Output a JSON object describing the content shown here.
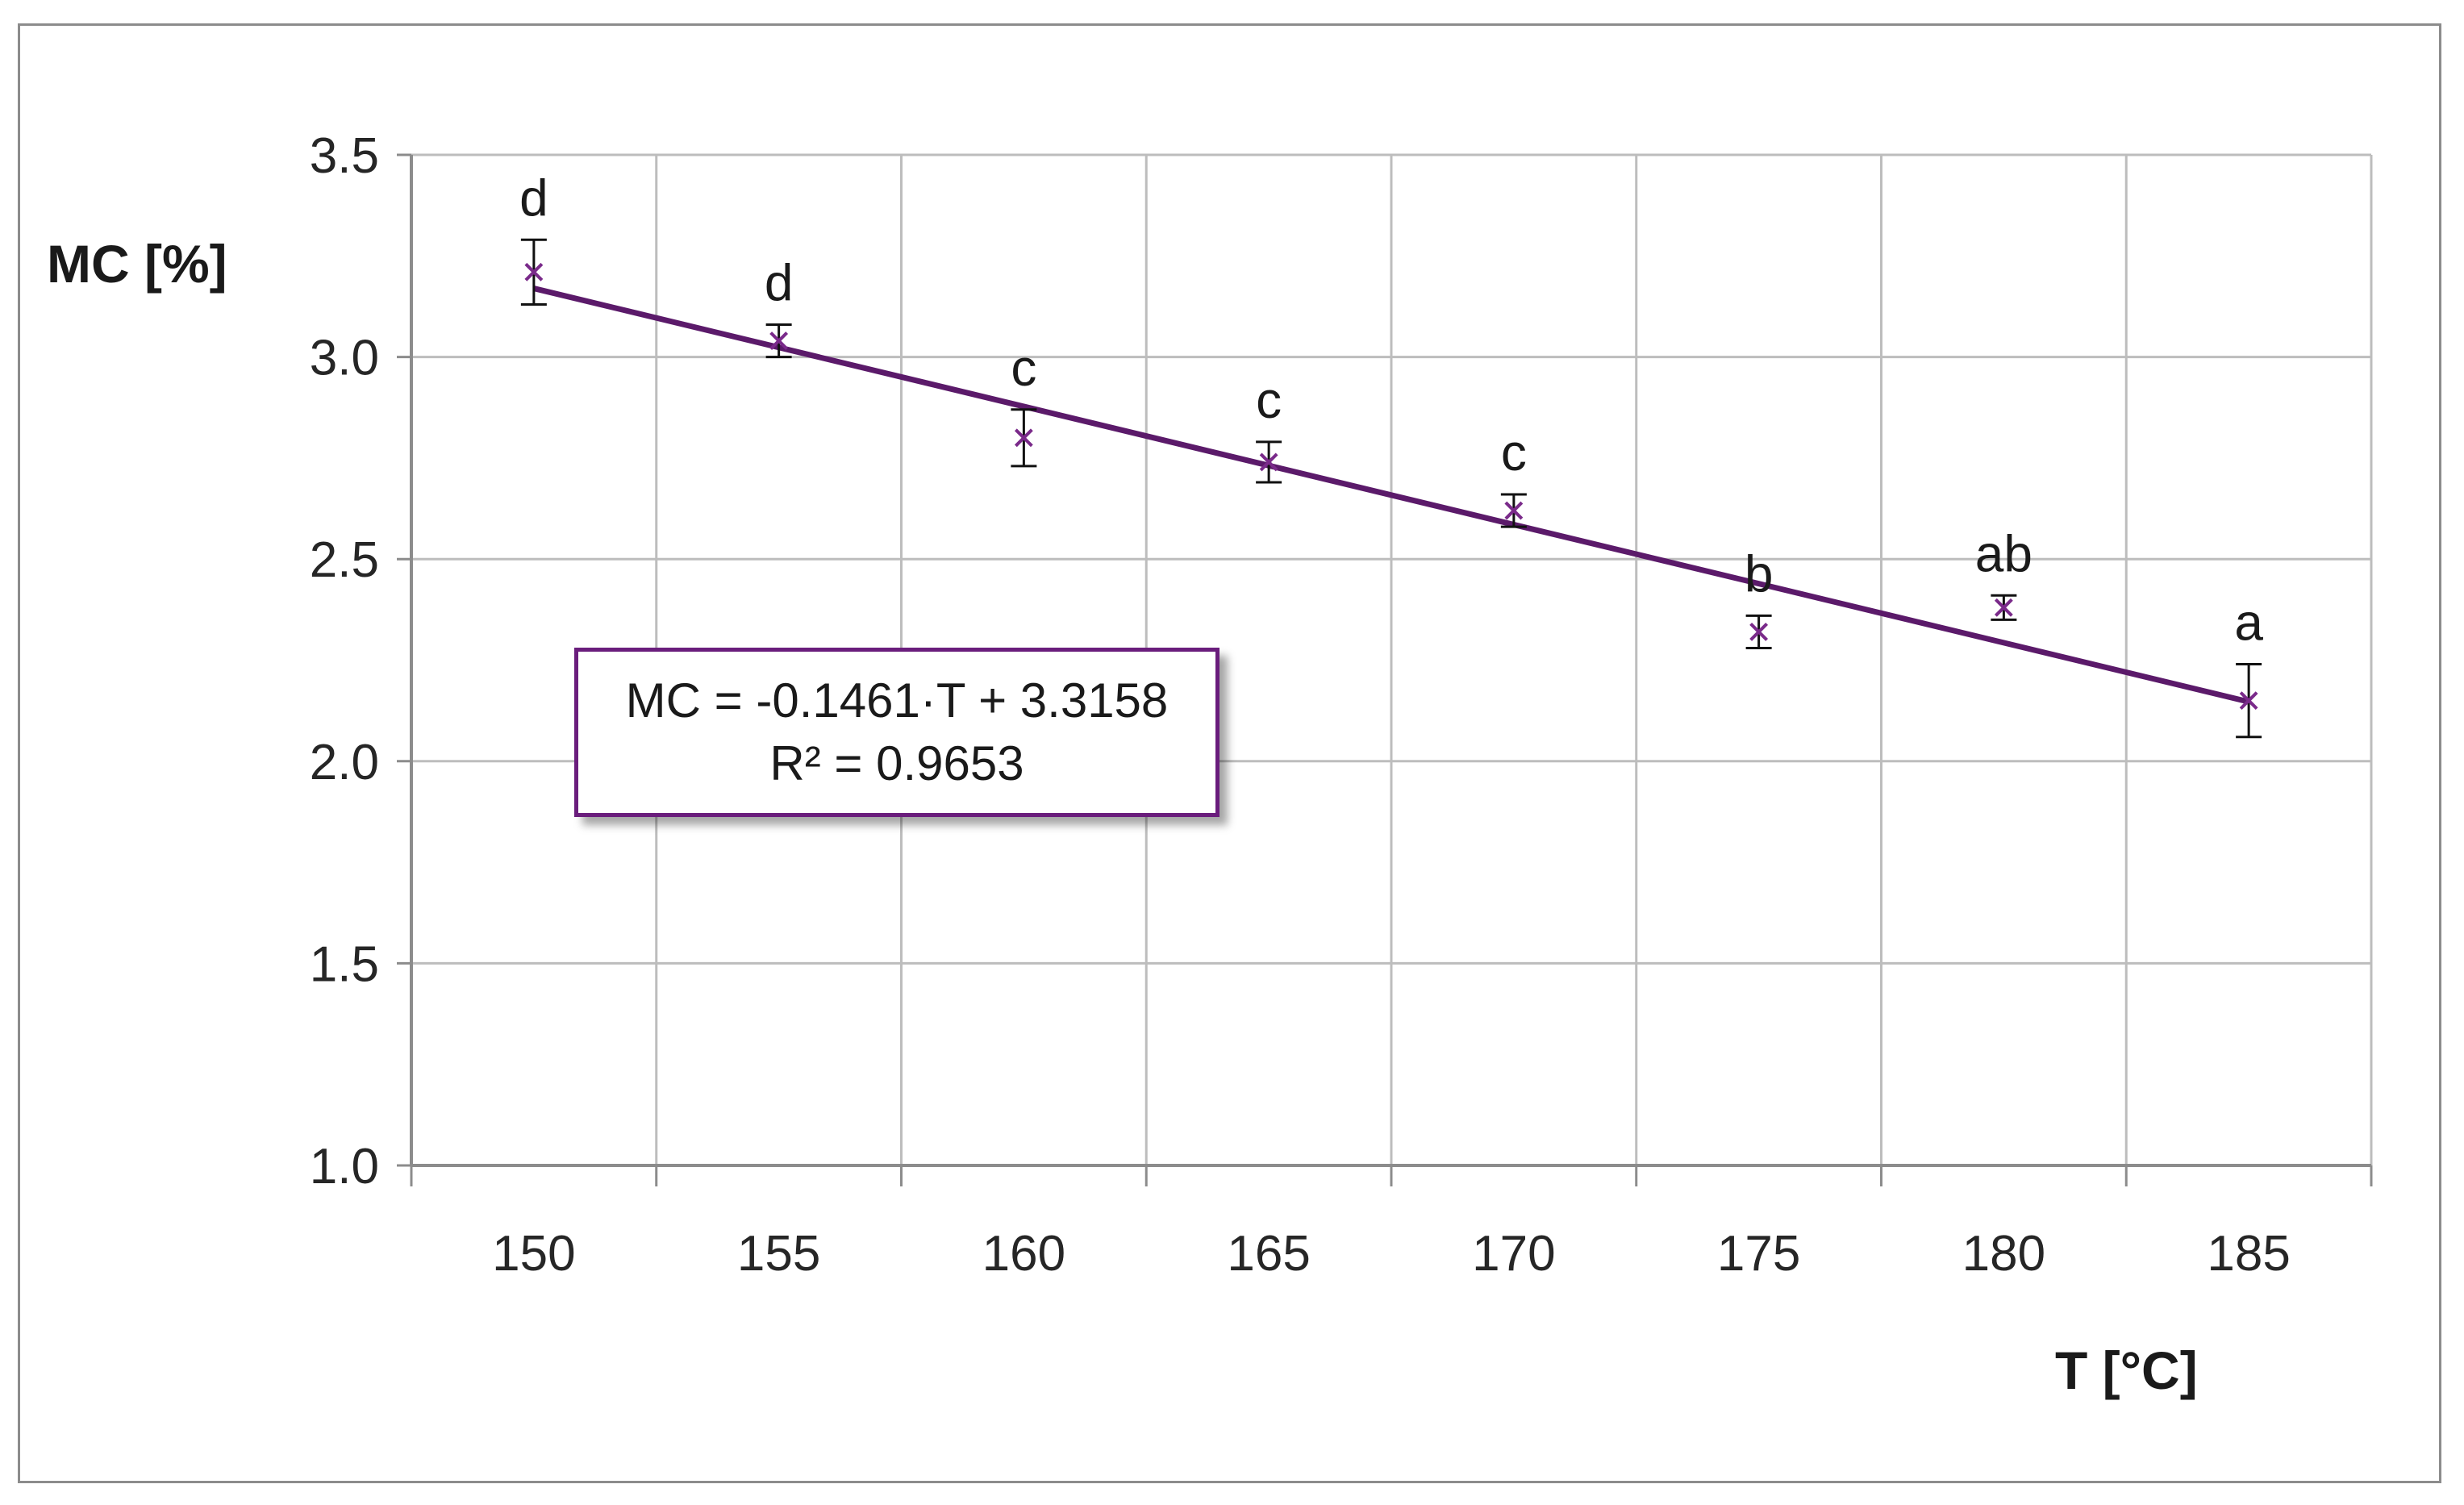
{
  "chart_data": {
    "type": "scatter",
    "xlabel": "T [°C]",
    "ylabel": "MC [%]",
    "xlim": [
      147.5,
      187.5
    ],
    "ylim": [
      1.0,
      3.5
    ],
    "x_ticks": [
      "150",
      "155",
      "160",
      "165",
      "170",
      "175",
      "180",
      "185"
    ],
    "y_ticks": [
      "1.0",
      "1.5",
      "2.0",
      "2.5",
      "3.0",
      "3.5"
    ],
    "grid": true,
    "points": [
      {
        "x": 150,
        "y": 3.21,
        "err": 0.08,
        "group": "d"
      },
      {
        "x": 155,
        "y": 3.04,
        "err": 0.04,
        "group": "d"
      },
      {
        "x": 160,
        "y": 2.8,
        "err": 0.07,
        "group": "c"
      },
      {
        "x": 165,
        "y": 2.74,
        "err": 0.05,
        "group": "c"
      },
      {
        "x": 170,
        "y": 2.62,
        "err": 0.04,
        "group": "c"
      },
      {
        "x": 175,
        "y": 2.32,
        "err": 0.04,
        "group": "b"
      },
      {
        "x": 180,
        "y": 2.38,
        "err": 0.03,
        "group": "ab"
      },
      {
        "x": 185,
        "y": 2.15,
        "err": 0.09,
        "group": "a"
      }
    ],
    "trendline": {
      "slope": -0.1461,
      "intercept": 3.3158,
      "x_index_start": 1,
      "x_index_end": 8
    },
    "equation": "MC = -0.1461·T + 3.3158",
    "r_squared": "R² = 0.9653",
    "colors": {
      "trendline": "#5b1a6a",
      "marker": "#7a2a8a",
      "grid": "#bdbdbd",
      "errorbar": "#111111"
    }
  }
}
